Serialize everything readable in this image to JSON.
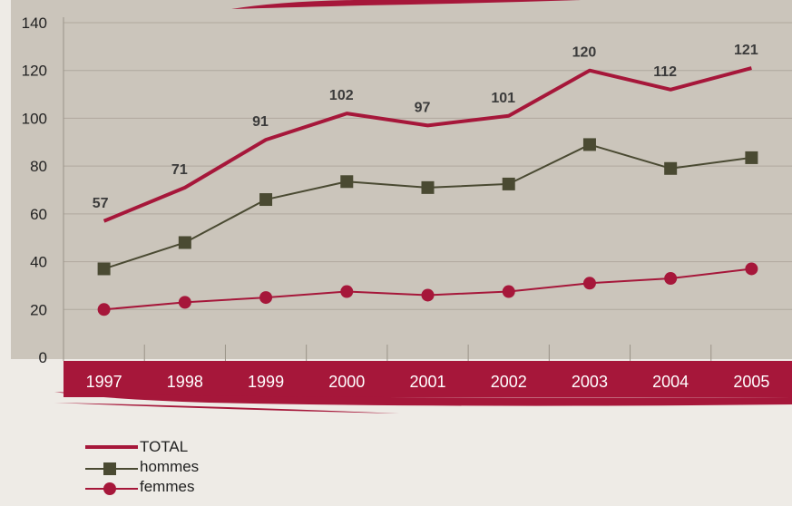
{
  "chart_data": {
    "type": "line",
    "categories": [
      "1997",
      "1998",
      "1999",
      "2000",
      "2001",
      "2002",
      "2003",
      "2004",
      "2005"
    ],
    "ylim": [
      0,
      140
    ],
    "yticks": [
      0,
      20,
      40,
      60,
      80,
      100,
      120,
      140
    ],
    "grid": true,
    "legend_position": "bottom-left",
    "series": [
      {
        "name": "TOTAL",
        "values": [
          57,
          71,
          91,
          102,
          97,
          101,
          120,
          112,
          121
        ],
        "labels": [
          "57",
          "71",
          "91",
          "102",
          "97",
          "101",
          "120",
          "112",
          "121"
        ],
        "color": "#a6173a",
        "marker": "none"
      },
      {
        "name": "hommes",
        "values": [
          37,
          48,
          66,
          73.5,
          71,
          72.5,
          89,
          79,
          83.5
        ],
        "color": "#4a4a32",
        "marker": "square"
      },
      {
        "name": "femmes",
        "values": [
          20,
          23,
          25,
          27.5,
          26,
          27.5,
          31,
          33,
          37
        ],
        "color": "#a6173a",
        "marker": "circle"
      }
    ]
  },
  "colors": {
    "plot_background": "#cbc5bb",
    "page_background": "#eeebe6",
    "accent": "#a6173a"
  }
}
